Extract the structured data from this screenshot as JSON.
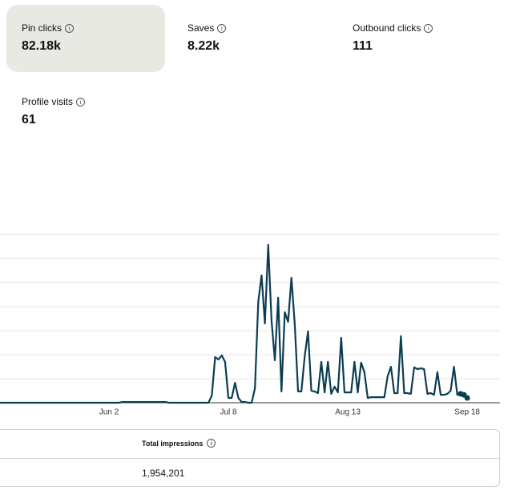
{
  "metrics": [
    {
      "label": "Pin clicks",
      "value": "82.18k"
    },
    {
      "label": "Saves",
      "value": "8.22k"
    },
    {
      "label": "Outbound clicks",
      "value": "111"
    },
    {
      "label": "Profile visits",
      "value": "61"
    }
  ],
  "chart_data": {
    "type": "line",
    "color": "#0b3d53",
    "grid": true,
    "ylim": [
      0,
      7
    ],
    "yticks": [
      0,
      1,
      2,
      3,
      4,
      5,
      6,
      7
    ],
    "categories": [
      null,
      null,
      null,
      null,
      null,
      null,
      null,
      null,
      null,
      null,
      null,
      null,
      null,
      null,
      null,
      null,
      null,
      null,
      null,
      null,
      null,
      null,
      null,
      null,
      null,
      null,
      null,
      null,
      null,
      null,
      null,
      null,
      null,
      "Jun 2",
      null,
      null,
      null,
      null,
      null,
      null,
      null,
      null,
      null,
      null,
      null,
      null,
      null,
      null,
      null,
      null,
      null,
      null,
      null,
      null,
      null,
      null,
      null,
      null,
      null,
      null,
      null,
      null,
      null,
      null,
      null,
      null,
      null,
      null,
      null,
      "Jul 8",
      null,
      null,
      null,
      null,
      null,
      null,
      null,
      null,
      null,
      null,
      null,
      null,
      null,
      null,
      null,
      null,
      null,
      null,
      null,
      null,
      null,
      null,
      null,
      null,
      null,
      null,
      null,
      null,
      null,
      null,
      null,
      null,
      null,
      null,
      null,
      "Aug 13",
      null,
      null,
      null,
      null,
      null,
      null,
      null,
      null,
      null,
      null,
      null,
      null,
      null,
      null,
      null,
      null,
      null,
      null,
      null,
      null,
      null,
      null,
      null,
      null,
      null,
      null,
      null,
      null,
      null,
      null,
      null,
      null,
      null,
      null,
      null,
      "Sep 18"
    ],
    "values": [
      0,
      0,
      0,
      0,
      0,
      0,
      0,
      0,
      0,
      0,
      0,
      0,
      0,
      0,
      0,
      0,
      0,
      0,
      0,
      0,
      0,
      0,
      0,
      0,
      0,
      0,
      0,
      0,
      0,
      0,
      0,
      0,
      0,
      0,
      0,
      0,
      0,
      0.03,
      0.03,
      0.03,
      0.03,
      0.03,
      0.03,
      0.03,
      0.03,
      0.03,
      0.03,
      0.03,
      0.03,
      0.03,
      0.03,
      0,
      0,
      0,
      0,
      0,
      0,
      0,
      0,
      0,
      0,
      0,
      0,
      0,
      0.3,
      1.9,
      1.8,
      1.97,
      1.7,
      0.2,
      0.2,
      0.83,
      0.2,
      0.03,
      0.03,
      0,
      0,
      0.6,
      4.2,
      5.3,
      3.3,
      6.57,
      3.43,
      1.77,
      4.37,
      0.47,
      3.77,
      3.37,
      5.2,
      3.27,
      0.47,
      0.47,
      1.93,
      2.97,
      0.5,
      0.47,
      0.4,
      1.7,
      0.43,
      1.7,
      0.37,
      0.67,
      0.43,
      2.7,
      0.43,
      0.43,
      0.43,
      1.7,
      0.43,
      1.67,
      1.27,
      0.2,
      0.23,
      0.23,
      0.23,
      0.23,
      0.23,
      1.1,
      1.5,
      0.4,
      0.4,
      2.77,
      0.4,
      0.4,
      0.37,
      1.47,
      1.4,
      1.43,
      1.4,
      0.37,
      0.4,
      0.33,
      1.27,
      0.33,
      0.33,
      0.37,
      0.5,
      1.5,
      0.33,
      0.37,
      0.33,
      0.2
    ]
  },
  "table": {
    "header": "Total impressions",
    "value": "1,954,201"
  }
}
